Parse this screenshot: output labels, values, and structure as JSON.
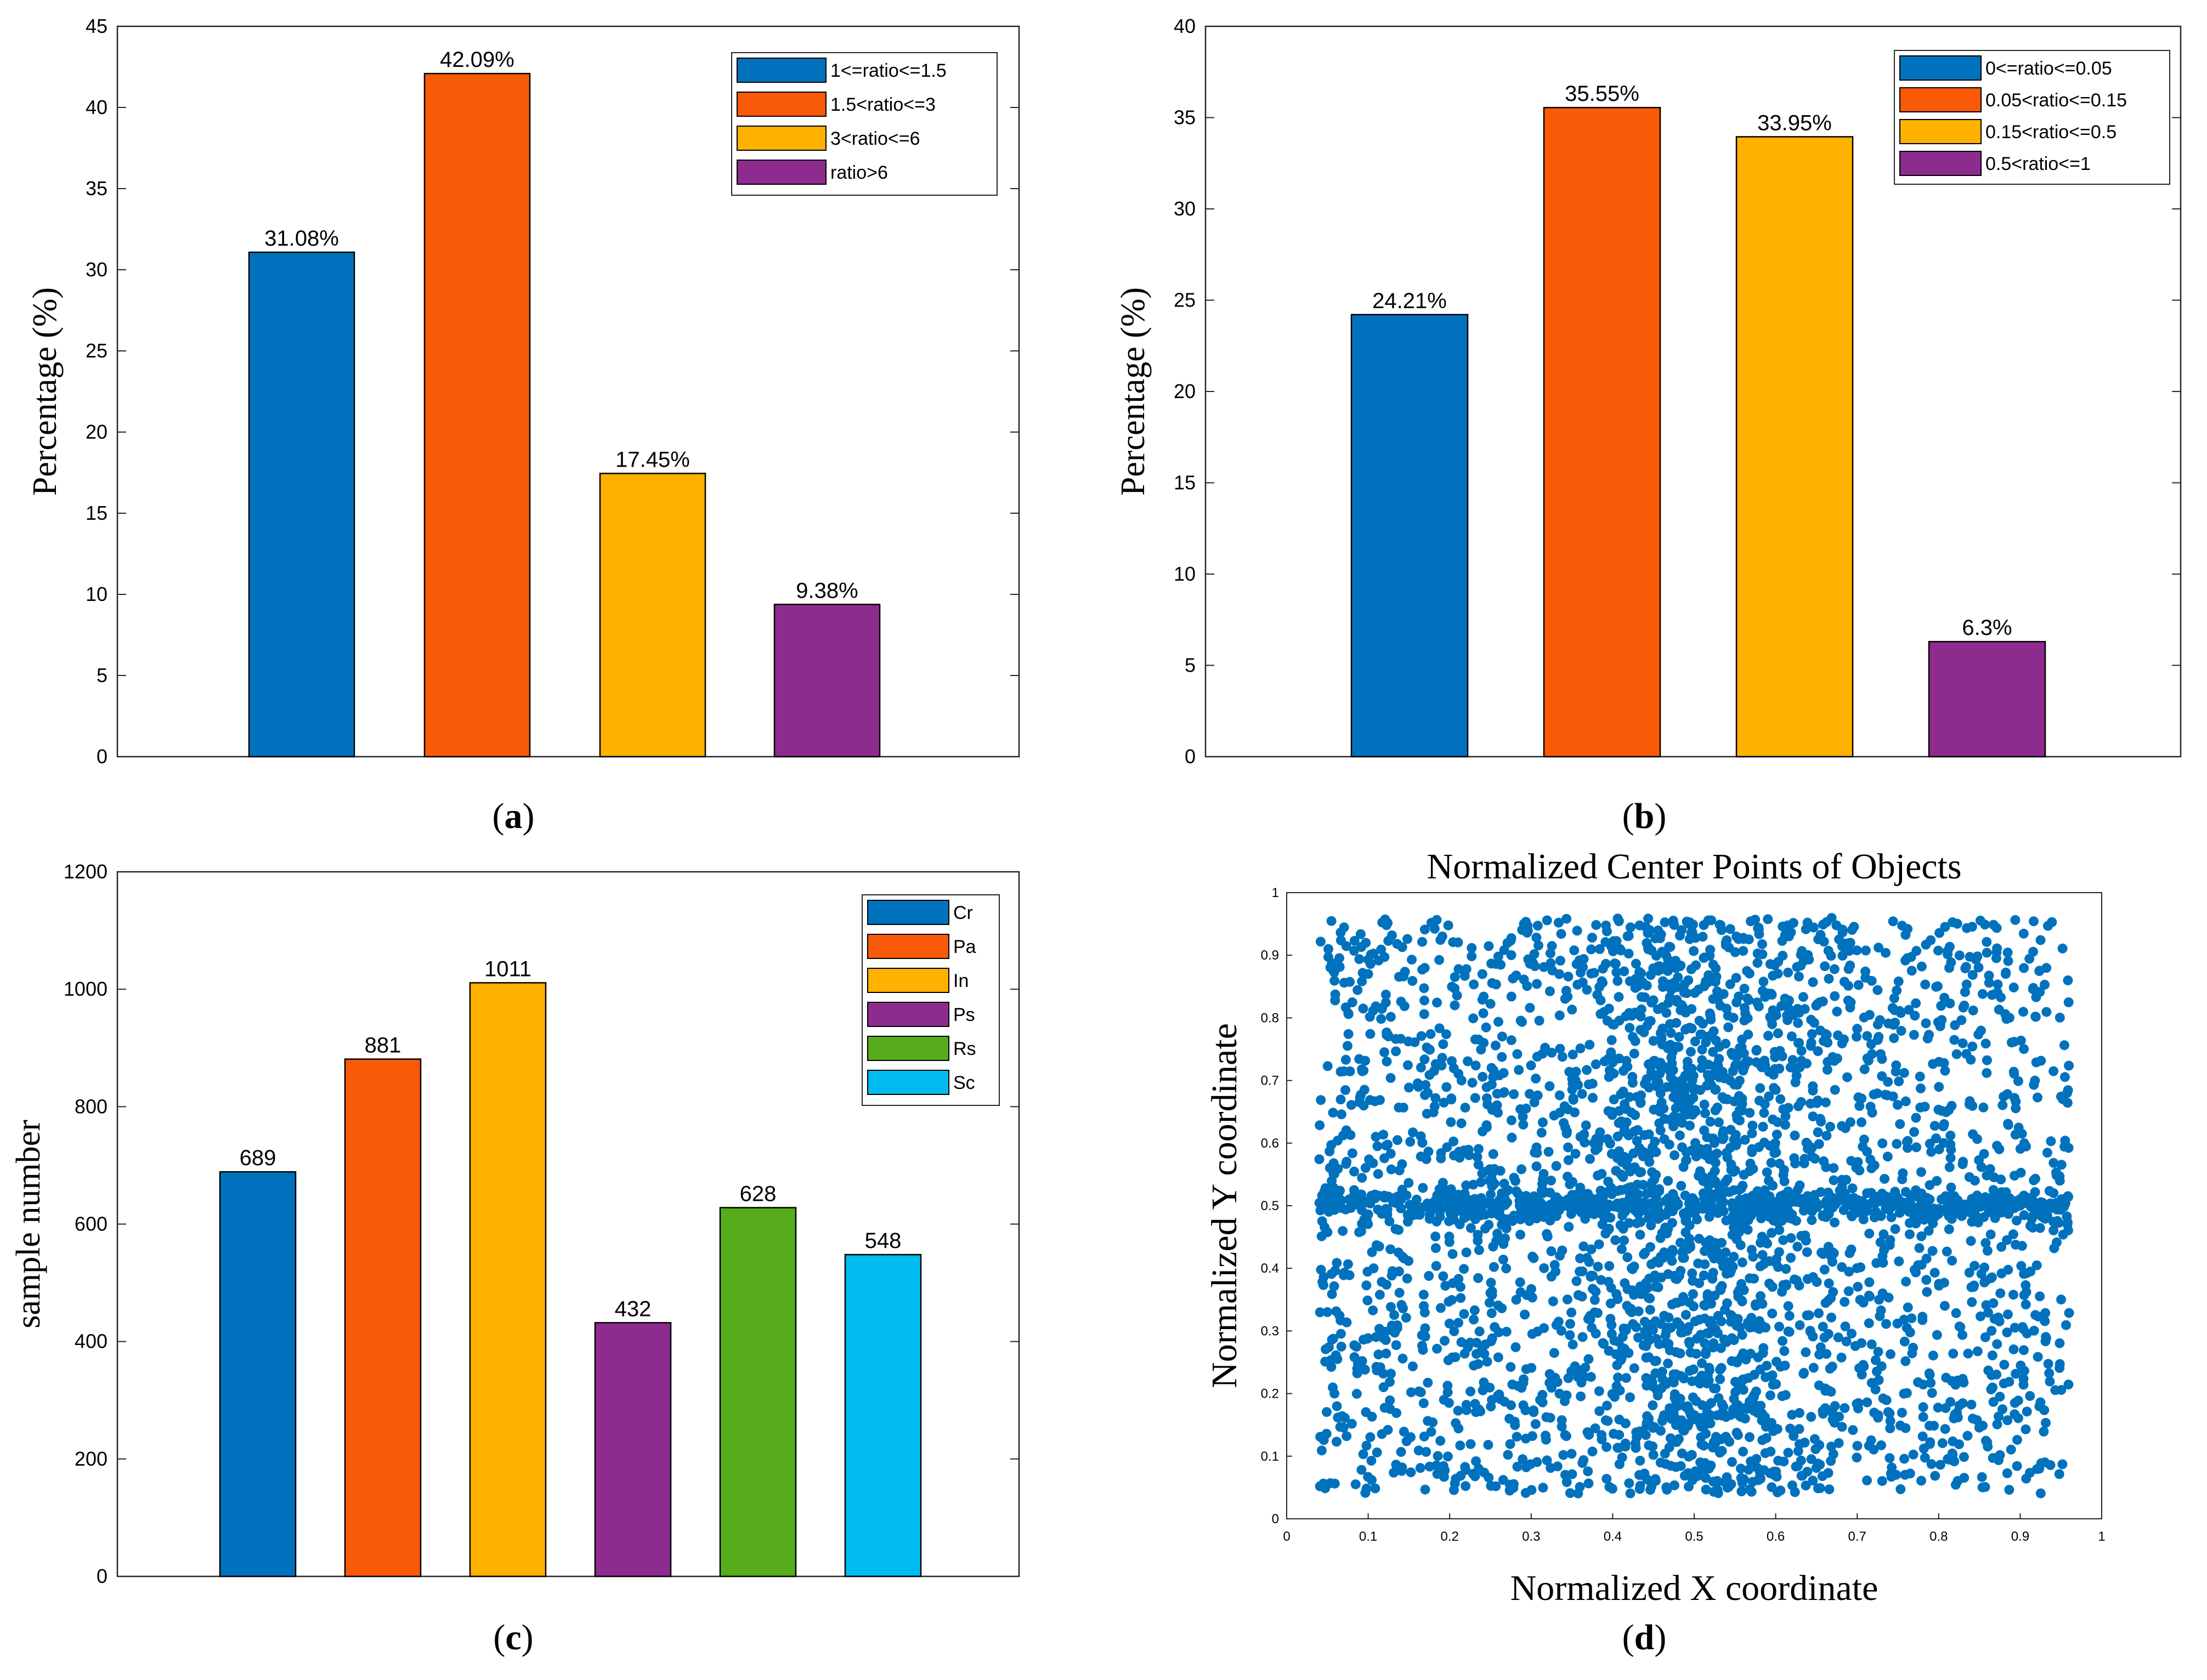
{
  "chart_data": [
    {
      "id": "a",
      "type": "bar",
      "panel_label": {
        "open": "(",
        "letter": "a",
        "close": ")"
      },
      "ylabel": "Percentage (%)",
      "ylim": [
        0,
        45
      ],
      "yticks": [
        0,
        5,
        10,
        15,
        20,
        25,
        30,
        35,
        40,
        45
      ],
      "categories": [
        "1<=ratio<=1.5",
        "1.5<ratio<=3",
        "3<ratio<=6",
        "ratio>6"
      ],
      "values": [
        31.08,
        42.09,
        17.45,
        9.38
      ],
      "value_labels": [
        "31.08%",
        "42.09%",
        "17.45%",
        "9.38%"
      ],
      "colors": [
        "#0072BD",
        "#F85A08",
        "#FFB100",
        "#8E2B8E"
      ],
      "legend": [
        "1<=ratio<=1.5",
        "1.5<ratio<=3",
        "3<ratio<=6",
        "ratio>6"
      ],
      "legend_position": "top-right"
    },
    {
      "id": "b",
      "type": "bar",
      "panel_label": {
        "open": "(",
        "letter": "b",
        "close": ")"
      },
      "ylabel": "Percentage (%)",
      "ylim": [
        0,
        40
      ],
      "yticks": [
        0,
        5,
        10,
        15,
        20,
        25,
        30,
        35,
        40
      ],
      "categories": [
        "0<=ratio<=0.05",
        "0.05<ratio<=0.15",
        "0.15<ratio<=0.5",
        "0.5<ratio<=1"
      ],
      "values": [
        24.21,
        35.55,
        33.95,
        6.3
      ],
      "value_labels": [
        "24.21%",
        "35.55%",
        "33.95%",
        "6.3%"
      ],
      "colors": [
        "#0072BD",
        "#F85A08",
        "#FFB100",
        "#8E2B8E"
      ],
      "legend": [
        "0<=ratio<=0.05",
        "0.05<ratio<=0.15",
        "0.15<ratio<=0.5",
        "0.5<ratio<=1"
      ],
      "legend_position": "top-right"
    },
    {
      "id": "c",
      "type": "bar",
      "panel_label": {
        "open": "(",
        "letter": "c",
        "close": ")"
      },
      "ylabel": "sample number",
      "ylim": [
        0,
        1200
      ],
      "yticks": [
        0,
        200,
        400,
        600,
        800,
        1000,
        1200
      ],
      "categories": [
        "Cr",
        "Pa",
        "In",
        "Ps",
        "Rs",
        "Sc"
      ],
      "values": [
        689,
        881,
        1011,
        432,
        628,
        548
      ],
      "value_labels": [
        "689",
        "881",
        "1011",
        "432",
        "628",
        "548"
      ],
      "colors": [
        "#0072BD",
        "#F85A08",
        "#FFB100",
        "#8E2B8E",
        "#56AC1A",
        "#00BBEE"
      ],
      "legend": [
        "Cr",
        "Pa",
        "In",
        "Ps",
        "Rs",
        "Sc"
      ],
      "legend_position": "top-right"
    },
    {
      "id": "d",
      "type": "scatter",
      "panel_label": {
        "open": "(",
        "letter": "d",
        "close": ")"
      },
      "title": "Normalized Center Points of Objects",
      "xlabel": "Normalized X coordinate",
      "ylabel": "Normalized Y coordinate",
      "xlim": [
        0,
        1
      ],
      "ylim": [
        0,
        1
      ],
      "xticks": [
        "0",
        "0.1",
        "0.2",
        "0.3",
        "0.4",
        "0.5",
        "0.6",
        "0.7",
        "0.8",
        "0.9",
        "1"
      ],
      "yticks": [
        "0",
        "0.1",
        "0.2",
        "0.3",
        "0.4",
        "0.5",
        "0.6",
        "0.7",
        "0.8",
        "0.9",
        "1"
      ],
      "point_color": "#0072BD",
      "point_count": 3800,
      "x_range": [
        0.04,
        0.96
      ],
      "y_range": [
        0.04,
        0.96
      ],
      "density_note": "dense band near y=0.5 and denser column near x=0.5"
    }
  ]
}
